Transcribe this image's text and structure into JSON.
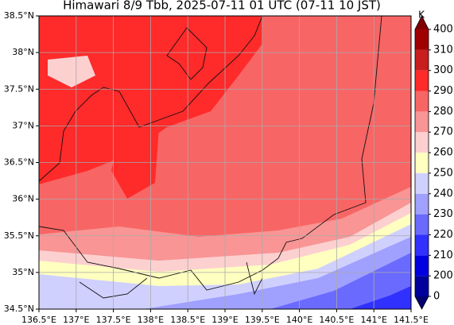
{
  "chart_data": {
    "type": "map",
    "title": "Himawari 8/9 Tbb, 2025-07-11 01 UTC (07-11 10 JST)",
    "xlim": [
      136.5,
      141.5
    ],
    "ylim": [
      34.5,
      38.5
    ],
    "xticks": [
      {
        "value": 136.5,
        "label": "136.5°E"
      },
      {
        "value": 137,
        "label": "137°E"
      },
      {
        "value": 137.5,
        "label": "137.5°E"
      },
      {
        "value": 138,
        "label": "138°E"
      },
      {
        "value": 138.5,
        "label": "138.5°E"
      },
      {
        "value": 139,
        "label": "139°E"
      },
      {
        "value": 139.5,
        "label": "139.5°E"
      },
      {
        "value": 140,
        "label": "140°E"
      },
      {
        "value": 140.5,
        "label": "140.5°E"
      },
      {
        "value": 141,
        "label": "141°E"
      },
      {
        "value": 141.5,
        "label": "141.5°E"
      }
    ],
    "yticks": [
      {
        "value": 34.5,
        "label": "34.5°N"
      },
      {
        "value": 35,
        "label": "35°N"
      },
      {
        "value": 35.5,
        "label": "35.5°N"
      },
      {
        "value": 36,
        "label": "36°N"
      },
      {
        "value": 36.5,
        "label": "36.5°N"
      },
      {
        "value": 37,
        "label": "37°N"
      },
      {
        "value": 37.5,
        "label": "37.5°N"
      },
      {
        "value": 38,
        "label": "38°N"
      },
      {
        "value": 38.5,
        "label": "38.5°N"
      }
    ],
    "grid": true,
    "colorbar": {
      "label": "K",
      "ticks": [
        0,
        200,
        210,
        220,
        230,
        240,
        250,
        260,
        270,
        280,
        290,
        300,
        310,
        400
      ],
      "colors": [
        "#00009a",
        "#0000e0",
        "#3030ff",
        "#6a6aff",
        "#a0a0ff",
        "#d0d0ff",
        "#ffffc0",
        "#fdd0d0",
        "#f99595",
        "#f86565",
        "#ff2a2a",
        "#c81e1e",
        "#a00000"
      ],
      "extend_colors": [
        "#000070",
        "#800000"
      ]
    }
  }
}
